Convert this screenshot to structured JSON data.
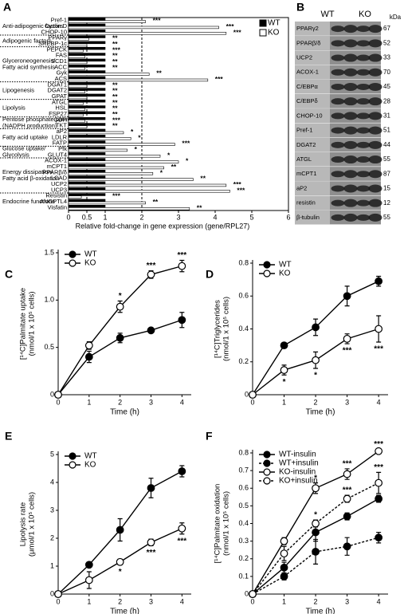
{
  "chart_data": [
    {
      "type": "hbar",
      "panel": "A",
      "xlabel": "Relative fold-change in gene expression (gene/RPL27)",
      "groups": [
        {
          "name": [
            "Anti-adipogenic factors"
          ],
          "categories": [
            "Pref-1",
            "Cyclin D",
            "CHOP-10"
          ]
        },
        {
          "name": [
            "Adipogenic factors"
          ],
          "categories": [
            "PPARγ",
            "SREBP-1c"
          ]
        },
        {
          "name": [
            "Glyceroneogenesis/",
            "Fatty acid synthesis"
          ],
          "categories": [
            "PEPCK",
            "FAS",
            "SCD1",
            "ACC",
            "Gyk",
            "ACS"
          ]
        },
        {
          "name": [
            "Lipogenesis"
          ],
          "categories": [
            "DGAT1",
            "DGAT2",
            "GPAT"
          ]
        },
        {
          "name": [
            "Lipolysis"
          ],
          "categories": [
            "ATGL",
            "HSL",
            "FSP27"
          ]
        },
        {
          "name": [
            "Pentose phosphate pathway",
            "(NADPH production)"
          ],
          "categories": [
            "GDH",
            "TKT"
          ]
        },
        {
          "name": [
            "Fatty acid uptake"
          ],
          "categories": [
            "aP2",
            "LDLR",
            "FATP"
          ]
        },
        {
          "name": [
            "Glucose uptake/",
            "Glycolysis"
          ],
          "categories": [
            "Pfk",
            "GLUT4"
          ]
        },
        {
          "name": [
            "Energy dissipation/",
            "Fatty acid β-oxidation"
          ],
          "categories": [
            "ACOX-1",
            "mCPT1",
            "PPARβ/δ",
            "LCAD",
            "UCP2",
            "UCP3"
          ]
        },
        {
          "name": [
            "Endocrine functions"
          ],
          "categories": [
            "Resistin",
            "ANGPTL4",
            "Visfatin"
          ]
        }
      ],
      "series": [
        {
          "name": "WT",
          "color": "#000000",
          "values": [
            1,
            1,
            1,
            1,
            1,
            1,
            1,
            1,
            1,
            1,
            1,
            1,
            1,
            1,
            1,
            1,
            1,
            1,
            1,
            1,
            1,
            1,
            1,
            1,
            1,
            1,
            1,
            1,
            1,
            1,
            1,
            1,
            1
          ]
        },
        {
          "name": "KO",
          "color": "#ffffff",
          "values": [
            2.1,
            4.1,
            4.3,
            0.55,
            0.5,
            0.4,
            0.45,
            0.5,
            0.45,
            2.2,
            3.8,
            0.5,
            0.45,
            0.5,
            0.4,
            0.45,
            0.4,
            0.45,
            0.5,
            1.5,
            1.7,
            2.9,
            1.6,
            2.5,
            3.0,
            2.6,
            2.3,
            3.4,
            4.3,
            4.4,
            0.35,
            2.1,
            3.3
          ],
          "significance": [
            "***",
            "***",
            "***",
            "**",
            "**",
            "***",
            "**",
            "**",
            "**",
            "**",
            "***",
            "**",
            "**",
            "**",
            "**",
            "**",
            "**",
            "***",
            "**",
            "*",
            "*",
            "***",
            "*",
            "*",
            "*",
            "**",
            "*",
            "**",
            "***",
            "***",
            "***",
            "**",
            "**"
          ]
        }
      ],
      "xlim": [
        0,
        6
      ],
      "xticks": [
        0,
        0.5,
        1,
        2,
        3,
        4,
        5,
        6
      ],
      "reference_lines": [
        0.5,
        2
      ],
      "legend": "top-right"
    },
    {
      "type": "line",
      "panel": "C",
      "ylabel": [
        "[¹⁴C]Palmitate uptake",
        "(nmol/1 x 10⁵ cells)"
      ],
      "xlabel": "Time (h)",
      "x": [
        0,
        1,
        2,
        3,
        4
      ],
      "xlim": [
        0,
        4.3
      ],
      "xticks": [
        0,
        1,
        2,
        3,
        4
      ],
      "ylim": [
        0,
        1.5
      ],
      "yticks": [
        0,
        0.5,
        {
          "value": 1,
          "label": "1.0"
        },
        1.5
      ],
      "legend": "top-left",
      "significance_position": "above",
      "series": [
        {
          "name": "WT",
          "color": "#000000",
          "marker_fill": "#000000",
          "line_style": "solid",
          "values": [
            0,
            0.4,
            0.6,
            0.68,
            0.79
          ],
          "errors": [
            0,
            0.06,
            0.05,
            0.02,
            0.08
          ]
        },
        {
          "name": "KO",
          "color": "#000000",
          "marker_fill": "#ffffff",
          "line_style": "solid",
          "values": [
            0,
            0.52,
            0.93,
            1.27,
            1.36
          ],
          "errors": [
            0,
            0.04,
            0.06,
            0.04,
            0.06
          ],
          "significance": [
            null,
            null,
            "*",
            "***",
            "***"
          ]
        }
      ]
    },
    {
      "type": "line",
      "panel": "D",
      "ylabel": [
        "[¹⁴C]Triglycerides",
        "(nmol/1 x 10⁵ cells)"
      ],
      "xlabel": "Time (h)",
      "x": [
        0,
        1,
        2,
        3,
        4
      ],
      "xlim": [
        0,
        4.3
      ],
      "xticks": [
        0,
        1,
        2,
        3,
        4
      ],
      "ylim": [
        0,
        0.8
      ],
      "yticks": [
        0,
        0.2,
        0.4,
        0.6,
        0.8
      ],
      "legend": "top-left",
      "significance_position": "below",
      "series": [
        {
          "name": "WT",
          "color": "#000000",
          "marker_fill": "#000000",
          "line_style": "solid",
          "values": [
            0,
            0.3,
            0.41,
            0.6,
            0.69
          ],
          "errors": [
            0,
            0.01,
            0.05,
            0.06,
            0.03
          ]
        },
        {
          "name": "KO",
          "color": "#000000",
          "marker_fill": "#ffffff",
          "line_style": "solid",
          "values": [
            0,
            0.15,
            0.21,
            0.34,
            0.4
          ],
          "errors": [
            0,
            0.03,
            0.05,
            0.03,
            0.08
          ],
          "significance": [
            null,
            "*",
            "*",
            "***",
            "***"
          ]
        }
      ]
    },
    {
      "type": "line",
      "panel": "E",
      "ylabel": [
        "Lipolysis rate",
        "(μmol/1 x 10⁵ cells)"
      ],
      "xlabel": "Time (h)",
      "x": [
        0,
        1,
        2,
        3,
        4
      ],
      "xlim": [
        0,
        4.3
      ],
      "xticks": [
        0,
        1,
        2,
        3,
        4
      ],
      "ylim": [
        0,
        5
      ],
      "yticks": [
        0,
        1,
        2,
        3,
        4,
        5
      ],
      "legend": "top-left",
      "significance_position": "below",
      "series": [
        {
          "name": "WT",
          "color": "#000000",
          "marker_fill": "#000000",
          "line_style": "solid",
          "values": [
            0,
            1.05,
            2.3,
            3.8,
            4.4
          ],
          "errors": [
            0,
            0.05,
            0.4,
            0.35,
            0.2
          ]
        },
        {
          "name": "KO",
          "color": "#000000",
          "marker_fill": "#ffffff",
          "line_style": "solid",
          "values": [
            0,
            0.5,
            1.15,
            1.85,
            2.35
          ],
          "errors": [
            0,
            0.3,
            0.1,
            0.12,
            0.2
          ],
          "significance": [
            null,
            null,
            "*",
            "***",
            "***"
          ]
        }
      ]
    },
    {
      "type": "line",
      "panel": "F",
      "ylabel": [
        "[¹⁴C]Palmitate oxidation",
        "(nmol/1 x 10⁵ cells)"
      ],
      "xlabel": "Time (h)",
      "x": [
        0,
        1,
        2,
        3,
        4
      ],
      "xlim": [
        0,
        4.3
      ],
      "xticks": [
        0,
        1,
        2,
        3,
        4
      ],
      "ylim": [
        0,
        0.8
      ],
      "yticks": [
        0,
        0.1,
        0.2,
        0.3,
        0.4,
        0.5,
        0.6,
        0.7,
        0.8
      ],
      "legend": "top-left",
      "significance_position": "above",
      "series": [
        {
          "name": "WT-insulin",
          "color": "#000000",
          "marker_fill": "#000000",
          "line_style": "solid",
          "values": [
            0,
            0.15,
            0.35,
            0.44,
            0.54
          ],
          "errors": [
            0,
            0.03,
            0.05,
            0.02,
            0.02
          ]
        },
        {
          "name": "WT+insulin",
          "color": "#000000",
          "marker_fill": "#000000",
          "line_style": "dashed",
          "values": [
            0,
            0.1,
            0.24,
            0.27,
            0.32
          ],
          "errors": [
            0,
            0.02,
            0.07,
            0.05,
            0.03
          ]
        },
        {
          "name": "KO-insulin",
          "color": "#000000",
          "marker_fill": "#ffffff",
          "line_style": "solid",
          "values": [
            0,
            0.3,
            0.6,
            0.68,
            0.81
          ],
          "errors": [
            0,
            0.02,
            0.03,
            0.03,
            0.01
          ],
          "significance": [
            null,
            null,
            "*",
            "***",
            "***"
          ]
        },
        {
          "name": "KO+insulin",
          "color": "#000000",
          "marker_fill": "#ffffff",
          "line_style": "dashed",
          "values": [
            0,
            0.23,
            0.4,
            0.54,
            0.63
          ],
          "errors": [
            0,
            0.04,
            0.02,
            0.02,
            0.06
          ],
          "significance": [
            null,
            null,
            "*",
            "***",
            "***"
          ]
        }
      ]
    }
  ],
  "blot": {
    "panel": "B",
    "columns": [
      "WT",
      "KO"
    ],
    "unit": "kDa",
    "rows": [
      {
        "protein": "PPARγ2",
        "kda": "67"
      },
      {
        "protein": "PPARβ/δ",
        "kda": "52"
      },
      {
        "protein": "UCP2",
        "kda": "33"
      },
      {
        "protein": "ACOX-1",
        "kda": "70"
      },
      {
        "protein": "C/EBPα",
        "kda": "45"
      },
      {
        "protein": "C/EBPδ",
        "kda": "28"
      },
      {
        "protein": "CHOP-10",
        "kda": "31"
      },
      {
        "protein": "Pref-1",
        "kda": "51"
      },
      {
        "protein": "DGAT2",
        "kda": "44"
      },
      {
        "protein": "ATGL",
        "kda": "55"
      },
      {
        "protein": "mCPT1",
        "kda": "87"
      },
      {
        "protein": "aP2",
        "kda": "15"
      },
      {
        "protein": "resistin",
        "kda": "12"
      },
      {
        "protein": "β-tubulin",
        "kda": "55"
      }
    ]
  }
}
